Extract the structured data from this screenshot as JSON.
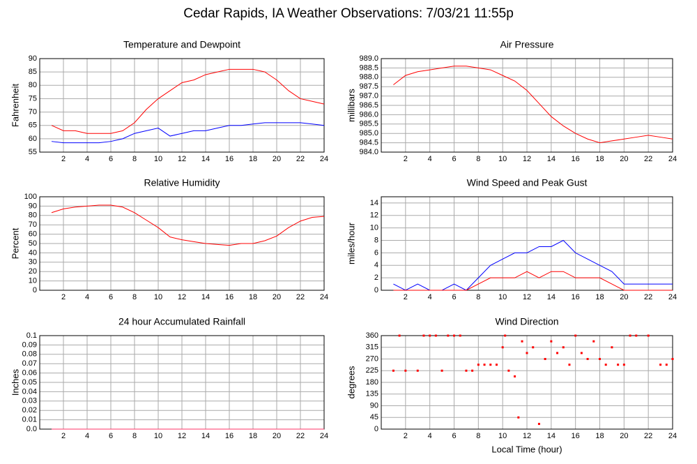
{
  "title": "Cedar Rapids, IA Weather Observations: 7/03/21 11:55p",
  "chart_data": [
    {
      "type": "line",
      "title": "Temperature and Dewpoint",
      "ylabel": "Fahrenheit",
      "x": [
        1,
        2,
        3,
        4,
        5,
        6,
        7,
        8,
        9,
        10,
        11,
        12,
        13,
        14,
        15,
        16,
        17,
        18,
        19,
        20,
        21,
        22,
        23,
        24
      ],
      "series": [
        {
          "color": "#ff0000",
          "values": [
            65,
            63,
            63,
            62,
            62,
            62,
            63,
            66,
            71,
            75,
            78,
            81,
            82,
            84,
            85,
            86,
            86,
            86,
            85,
            82,
            78,
            75,
            74,
            73
          ]
        },
        {
          "color": "#0000ff",
          "values": [
            59,
            58.5,
            58.5,
            58.5,
            58.5,
            59,
            60,
            62,
            63,
            64,
            61,
            62,
            63,
            63,
            64,
            65,
            65,
            65.5,
            66,
            66,
            66,
            66,
            65.5,
            65
          ]
        }
      ],
      "xlim": [
        0,
        24
      ],
      "xticks": [
        2,
        4,
        6,
        8,
        10,
        12,
        14,
        16,
        18,
        20,
        22,
        24
      ],
      "ylim": [
        55,
        90
      ],
      "yticks": [
        55,
        60,
        65,
        70,
        75,
        80,
        85,
        90
      ],
      "grid": true
    },
    {
      "type": "line",
      "title": "Air Pressure",
      "ylabel": "millibars",
      "x": [
        1,
        2,
        3,
        4,
        5,
        6,
        7,
        8,
        9,
        10,
        11,
        12,
        13,
        14,
        15,
        16,
        17,
        18,
        19,
        20,
        21,
        22,
        23,
        24
      ],
      "series": [
        {
          "color": "#ff0000",
          "values": [
            987.6,
            988.1,
            988.3,
            988.4,
            988.5,
            988.6,
            988.6,
            988.5,
            988.4,
            988.1,
            987.8,
            987.3,
            986.6,
            985.9,
            985.4,
            985.0,
            984.7,
            984.5,
            984.6,
            984.7,
            984.8,
            984.9,
            984.8,
            984.7
          ]
        }
      ],
      "xlim": [
        0,
        24
      ],
      "xticks": [
        2,
        4,
        6,
        8,
        10,
        12,
        14,
        16,
        18,
        20,
        22,
        24
      ],
      "ylim": [
        984,
        989
      ],
      "yticks": [
        {
          "value": 984,
          "label": "984.0"
        },
        984.5,
        {
          "value": 985,
          "label": "985.0"
        },
        985.5,
        {
          "value": 986,
          "label": "986.0"
        },
        986.5,
        {
          "value": 987,
          "label": "987.0"
        },
        987.5,
        {
          "value": 988,
          "label": "988.0"
        },
        988.5,
        {
          "value": 989,
          "label": "989.0"
        }
      ],
      "grid": true
    },
    {
      "type": "line",
      "title": "Relative Humidity",
      "ylabel": "Percent",
      "x": [
        1,
        2,
        3,
        4,
        5,
        6,
        7,
        8,
        9,
        10,
        11,
        12,
        13,
        14,
        15,
        16,
        17,
        18,
        19,
        20,
        21,
        22,
        23,
        24
      ],
      "series": [
        {
          "color": "#ff0000",
          "values": [
            83,
            87,
            89,
            90,
            91,
            91,
            89,
            83,
            75,
            67,
            57,
            54,
            52,
            50,
            49,
            48,
            50,
            50,
            53,
            58,
            67,
            74,
            78,
            79
          ]
        }
      ],
      "xlim": [
        0,
        24
      ],
      "xticks": [
        2,
        4,
        6,
        8,
        10,
        12,
        14,
        16,
        18,
        20,
        22,
        24
      ],
      "ylim": [
        0,
        100
      ],
      "yticks": [
        0,
        10,
        20,
        30,
        40,
        50,
        60,
        70,
        80,
        90,
        100
      ],
      "grid": true
    },
    {
      "type": "line",
      "title": "Wind Speed and Peak Gust",
      "ylabel": "miles/hour",
      "x": [
        1,
        2,
        3,
        4,
        5,
        6,
        7,
        8,
        9,
        10,
        11,
        12,
        13,
        14,
        15,
        16,
        17,
        18,
        19,
        20,
        21,
        22,
        23,
        24
      ],
      "series": [
        {
          "color": "#0000ff",
          "values": [
            1,
            0,
            1,
            0,
            0,
            1,
            0,
            2,
            4,
            5,
            6,
            6,
            7,
            7,
            8,
            6,
            5,
            4,
            3,
            1,
            1,
            1,
            1,
            1
          ]
        },
        {
          "color": "#ff0000",
          "values": [
            0,
            0,
            0,
            0,
            0,
            0,
            0,
            1,
            2,
            2,
            2,
            3,
            2,
            3,
            3,
            2,
            2,
            2,
            1,
            0,
            0,
            0,
            0,
            0
          ]
        }
      ],
      "xlim": [
        0,
        24
      ],
      "xticks": [
        2,
        4,
        6,
        8,
        10,
        12,
        14,
        16,
        18,
        20,
        22,
        24
      ],
      "ylim": [
        0,
        15
      ],
      "yticks": [
        0,
        2,
        4,
        6,
        8,
        10,
        12,
        14
      ],
      "grid": true
    },
    {
      "type": "line",
      "title": "24 hour Accumulated Rainfall",
      "ylabel": "Inches",
      "x": [
        1,
        24
      ],
      "series": [
        {
          "color": "#ff3366",
          "values": [
            0,
            0
          ]
        }
      ],
      "xlim": [
        0,
        24
      ],
      "xticks": [
        2,
        4,
        6,
        8,
        10,
        12,
        14,
        16,
        18,
        20,
        22,
        24
      ],
      "ylim": [
        0,
        0.1
      ],
      "yticks": [
        {
          "value": 0,
          "label": "0.0"
        },
        0.01,
        0.02,
        0.03,
        0.04,
        0.05,
        0.06,
        0.07,
        0.08,
        0.09,
        0.1
      ],
      "grid": true
    },
    {
      "type": "scatter",
      "title": "Wind Direction",
      "ylabel": "degrees",
      "xlabel": "Local Time (hour)",
      "x": [
        1,
        1.5,
        2,
        3,
        3.5,
        4,
        4.5,
        5,
        5.5,
        6,
        6.5,
        7,
        7.5,
        8,
        8.5,
        9,
        9.5,
        10,
        10.2,
        10.5,
        11,
        11.3,
        11.6,
        12,
        12.5,
        13,
        13.5,
        14,
        14.5,
        15,
        15.5,
        16,
        16.5,
        17,
        17.5,
        18,
        18.5,
        19,
        19.5,
        20,
        20.5,
        21,
        22,
        23,
        23.5,
        24
      ],
      "series": [
        {
          "color": "#ff0000",
          "values": [
            225,
            360,
            225,
            225,
            360,
            360,
            360,
            225,
            360,
            360,
            360,
            225,
            225,
            248,
            248,
            248,
            248,
            315,
            360,
            225,
            203,
            45,
            338,
            293,
            315,
            20,
            270,
            338,
            293,
            315,
            248,
            360,
            293,
            270,
            338,
            270,
            248,
            315,
            248,
            248,
            360,
            360,
            360,
            248,
            248,
            270
          ]
        }
      ],
      "xlim": [
        0,
        24
      ],
      "xticks": [
        2,
        4,
        6,
        8,
        10,
        12,
        14,
        16,
        18,
        20,
        22,
        24
      ],
      "ylim": [
        0,
        360
      ],
      "yticks": [
        0,
        45,
        90,
        135,
        180,
        225,
        270,
        315,
        360
      ],
      "grid": true
    }
  ]
}
